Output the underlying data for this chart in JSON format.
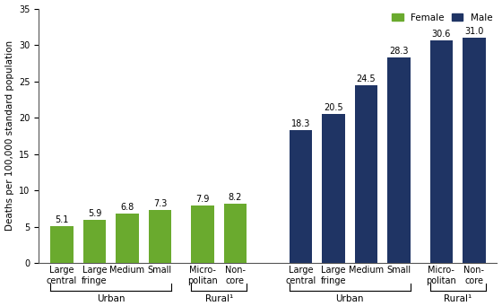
{
  "female_values": [
    5.1,
    5.9,
    6.8,
    7.3,
    7.9,
    8.2
  ],
  "male_values": [
    18.3,
    20.5,
    24.5,
    28.3,
    30.6,
    31.0
  ],
  "female_color": "#6aaa2e",
  "male_color": "#1f3464",
  "bar_width": 0.7,
  "ylim": [
    0,
    35
  ],
  "yticks": [
    0,
    5,
    10,
    15,
    20,
    25,
    30,
    35
  ],
  "ylabel": "Deaths per 100,000 standard population",
  "bar_labels_female": [
    "Large\ncentral",
    "Large\nfringe",
    "Medium",
    "Small",
    "Micro-\npolitan",
    "Non-\ncore"
  ],
  "bar_labels_male": [
    "Large\ncentral",
    "Large\nfringe",
    "Medium",
    "Small",
    "Micro-\npolitan",
    "Non-\ncore"
  ],
  "group_label_urban": "Urban",
  "group_label_rural": "Rural¹",
  "legend_female": "Female",
  "legend_male": "Male",
  "tick_fontsize": 7.0,
  "ylabel_fontsize": 7.5,
  "label_fontsize": 7.5,
  "value_label_fontsize": 7.0,
  "group_label_fontsize": 7.5
}
